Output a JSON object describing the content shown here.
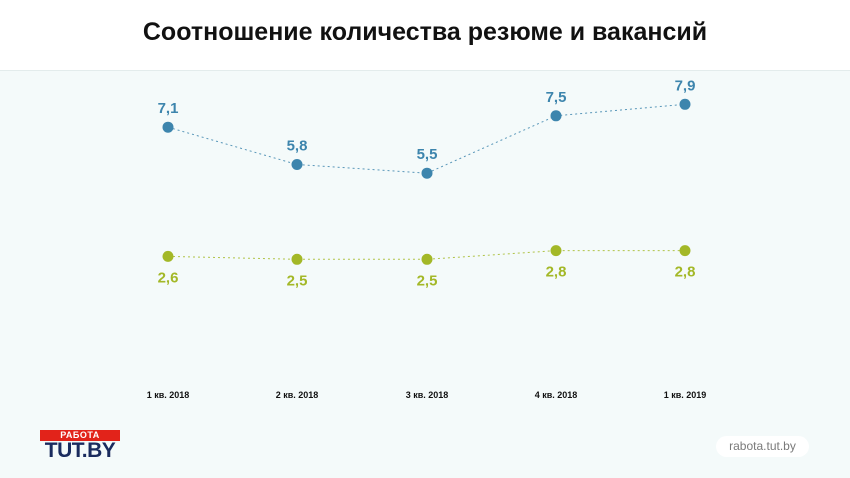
{
  "header": {
    "title": "Соотношение количества резюме и вакансий"
  },
  "footer": {
    "logo_badge": "РАБОТА",
    "logo_text": "TUT.BY",
    "site": "rabota.tut.by"
  },
  "colors": {
    "series_blue": "#3d85ad",
    "series_green": "#a3b827"
  },
  "chart_data": {
    "type": "line",
    "title": "Соотношение количества резюме и вакансий",
    "categories": [
      "1 кв. 2018",
      "2 кв. 2018",
      "3 кв. 2018",
      "4 кв. 2018",
      "1 кв. 2019"
    ],
    "series": [
      {
        "values": [
          7.1,
          5.8,
          5.5,
          7.5,
          7.9
        ],
        "labels": [
          "7,1",
          "5,8",
          "5,5",
          "7,5",
          "7,9"
        ]
      },
      {
        "values": [
          2.6,
          2.5,
          2.5,
          2.8,
          2.8
        ],
        "labels": [
          "2,6",
          "2,5",
          "2,5",
          "2,8",
          "2,8"
        ]
      }
    ],
    "grid": false,
    "legend": "none"
  }
}
